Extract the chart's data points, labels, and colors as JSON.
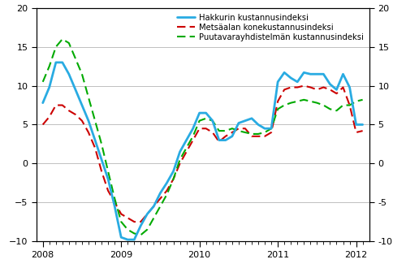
{
  "title": "",
  "ylim": [
    -10,
    20
  ],
  "yticks": [
    -10,
    -5,
    0,
    5,
    10,
    15,
    20
  ],
  "hakkuri_color": "#29ABE2",
  "metsaala_color": "#CC0000",
  "puutavara_color": "#00AA00",
  "legend_labels": [
    "Hakkurin kustannusindeksi",
    "Metsäalan konekustannusindeksi",
    "Puutavarayhdistelmän kustannusindeksi"
  ],
  "hakkuri_x": [
    2008.0,
    2008.083,
    2008.167,
    2008.25,
    2008.333,
    2008.417,
    2008.5,
    2008.583,
    2008.667,
    2008.75,
    2008.833,
    2008.917,
    2009.0,
    2009.083,
    2009.167,
    2009.25,
    2009.333,
    2009.417,
    2009.5,
    2009.583,
    2009.667,
    2009.75,
    2009.833,
    2009.917,
    2010.0,
    2010.083,
    2010.167,
    2010.25,
    2010.333,
    2010.417,
    2010.5,
    2010.583,
    2010.667,
    2010.75,
    2010.833,
    2010.917,
    2011.0,
    2011.083,
    2011.167,
    2011.25,
    2011.333,
    2011.417,
    2011.5,
    2011.583,
    2011.667,
    2011.75,
    2011.833,
    2011.917,
    2012.0,
    2012.083
  ],
  "hakkuri_y": [
    7.8,
    9.8,
    13.0,
    13.0,
    11.5,
    9.5,
    7.5,
    5.5,
    3.0,
    0.5,
    -2.0,
    -5.5,
    -9.5,
    -9.8,
    -9.8,
    -8.0,
    -6.5,
    -5.5,
    -3.8,
    -2.5,
    -1.0,
    1.5,
    3.0,
    4.5,
    6.5,
    6.5,
    5.5,
    3.0,
    3.0,
    3.5,
    5.2,
    5.5,
    5.8,
    5.0,
    4.5,
    4.5,
    10.5,
    11.7,
    11.0,
    10.5,
    11.7,
    11.5,
    11.5,
    11.5,
    10.2,
    9.5,
    11.5,
    9.8,
    5.0,
    5.0
  ],
  "metsaala_x": [
    2008.0,
    2008.083,
    2008.167,
    2008.25,
    2008.333,
    2008.417,
    2008.5,
    2008.583,
    2008.667,
    2008.75,
    2008.833,
    2008.917,
    2009.0,
    2009.083,
    2009.167,
    2009.25,
    2009.333,
    2009.417,
    2009.5,
    2009.583,
    2009.667,
    2009.75,
    2009.833,
    2009.917,
    2010.0,
    2010.083,
    2010.167,
    2010.25,
    2010.333,
    2010.417,
    2010.5,
    2010.583,
    2010.667,
    2010.75,
    2010.833,
    2010.917,
    2011.0,
    2011.083,
    2011.167,
    2011.25,
    2011.333,
    2011.417,
    2011.5,
    2011.583,
    2011.667,
    2011.75,
    2011.833,
    2011.917,
    2012.0,
    2012.083
  ],
  "metsaala_y": [
    5.0,
    6.0,
    7.5,
    7.5,
    6.8,
    6.3,
    5.5,
    4.0,
    2.0,
    -1.0,
    -3.5,
    -5.0,
    -6.5,
    -7.0,
    -7.5,
    -7.5,
    -6.5,
    -5.5,
    -4.5,
    -3.5,
    -2.0,
    0.0,
    1.5,
    3.0,
    4.5,
    4.5,
    4.0,
    2.8,
    3.5,
    4.0,
    4.5,
    4.5,
    3.5,
    3.5,
    3.5,
    4.0,
    8.0,
    9.5,
    9.8,
    9.8,
    10.0,
    9.8,
    9.5,
    9.8,
    9.5,
    9.0,
    9.8,
    7.5,
    4.0,
    4.2
  ],
  "puutavara_x": [
    2008.0,
    2008.083,
    2008.167,
    2008.25,
    2008.333,
    2008.417,
    2008.5,
    2008.583,
    2008.667,
    2008.75,
    2008.833,
    2008.917,
    2009.0,
    2009.083,
    2009.167,
    2009.25,
    2009.333,
    2009.417,
    2009.5,
    2009.583,
    2009.667,
    2009.75,
    2009.833,
    2009.917,
    2010.0,
    2010.083,
    2010.167,
    2010.25,
    2010.333,
    2010.417,
    2010.5,
    2010.583,
    2010.667,
    2010.75,
    2010.833,
    2010.917,
    2011.0,
    2011.083,
    2011.167,
    2011.25,
    2011.333,
    2011.417,
    2011.5,
    2011.583,
    2011.667,
    2011.75,
    2011.833,
    2011.917,
    2012.0,
    2012.083
  ],
  "puutavara_y": [
    10.5,
    12.5,
    15.0,
    16.0,
    15.5,
    13.5,
    11.5,
    8.5,
    5.5,
    2.5,
    -1.0,
    -4.5,
    -7.5,
    -8.5,
    -9.0,
    -9.2,
    -8.5,
    -7.0,
    -5.5,
    -4.0,
    -2.0,
    0.5,
    2.0,
    3.5,
    5.5,
    5.8,
    5.5,
    4.2,
    4.2,
    4.5,
    4.2,
    4.0,
    3.8,
    3.8,
    4.0,
    4.5,
    7.0,
    7.5,
    7.8,
    8.0,
    8.2,
    8.0,
    7.8,
    7.5,
    7.0,
    6.8,
    7.5,
    7.5,
    8.0,
    8.2
  ],
  "xtick_positions": [
    2008,
    2009,
    2010,
    2011,
    2012
  ],
  "xtick_labels": [
    "2008",
    "2009",
    "2010",
    "2011",
    "2012"
  ],
  "background_color": "#ffffff",
  "grid_color": "#c0c0c0",
  "figsize": [
    5.0,
    3.3
  ],
  "dpi": 100
}
